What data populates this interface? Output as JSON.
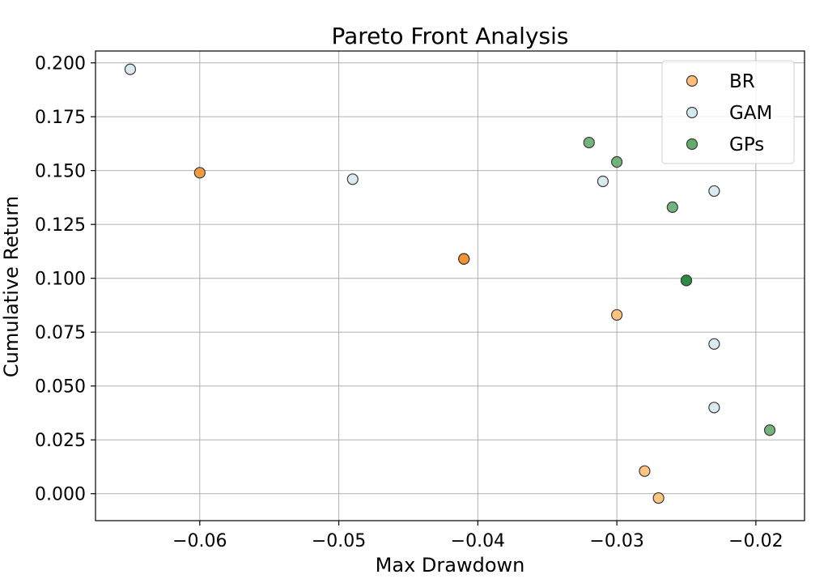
{
  "chart_data": {
    "type": "scatter",
    "title": "Pareto Front Analysis",
    "xlabel": "Max Drawdown",
    "ylabel": "Cumulative Return",
    "xlim": [
      -0.0675,
      -0.0165
    ],
    "ylim": [
      -0.0125,
      0.2055
    ],
    "xticks": [
      -0.06,
      -0.05,
      -0.04,
      -0.03,
      -0.02
    ],
    "xtick_labels": [
      "−0.06",
      "−0.05",
      "−0.04",
      "−0.03",
      "−0.02"
    ],
    "yticks": [
      0.0,
      0.025,
      0.05,
      0.075,
      0.1,
      0.125,
      0.15,
      0.175,
      0.2
    ],
    "ytick_labels": [
      "0.000",
      "0.025",
      "0.050",
      "0.075",
      "0.100",
      "0.125",
      "0.150",
      "0.175",
      "0.200"
    ],
    "grid": true,
    "legend_position": "top-right",
    "series": [
      {
        "name": "BR",
        "color": "#ffbe73",
        "points": [
          {
            "x": -0.06,
            "y": 0.149,
            "color": "#f5922f"
          },
          {
            "x": -0.041,
            "y": 0.109,
            "color": "#f5922f"
          },
          {
            "x": -0.041,
            "y": 0.109,
            "color": "#f5922f"
          },
          {
            "x": -0.03,
            "y": 0.083
          },
          {
            "x": -0.028,
            "y": 0.0105
          },
          {
            "x": -0.027,
            "y": -0.002
          }
        ]
      },
      {
        "name": "GAM",
        "color": "#d6e8ef",
        "points": [
          {
            "x": -0.065,
            "y": 0.197
          },
          {
            "x": -0.049,
            "y": 0.146
          },
          {
            "x": -0.031,
            "y": 0.145
          },
          {
            "x": -0.023,
            "y": 0.1405
          },
          {
            "x": -0.023,
            "y": 0.0695
          },
          {
            "x": -0.023,
            "y": 0.04
          }
        ]
      },
      {
        "name": "GPs",
        "color": "#63ac6e",
        "points": [
          {
            "x": -0.032,
            "y": 0.163
          },
          {
            "x": -0.03,
            "y": 0.154
          },
          {
            "x": -0.026,
            "y": 0.133
          },
          {
            "x": -0.025,
            "y": 0.099,
            "color": "#2e8b3d"
          },
          {
            "x": -0.025,
            "y": 0.099,
            "color": "#2e8b3d"
          },
          {
            "x": -0.019,
            "y": 0.0295
          }
        ]
      }
    ]
  }
}
